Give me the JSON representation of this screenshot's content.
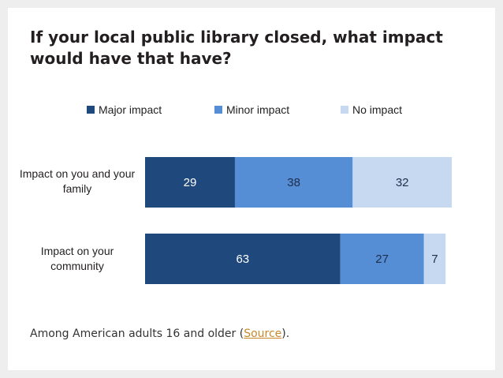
{
  "chart_data": {
    "type": "bar",
    "orientation": "horizontal",
    "stacked": true,
    "title": "If your local public library closed, what impact would have that have?",
    "categories": [
      "Impact on you and your family",
      "Impact on your community"
    ],
    "series": [
      {
        "name": "Major impact",
        "values": [
          29,
          63
        ],
        "color": "#1f497d"
      },
      {
        "name": "Minor impact",
        "values": [
          38,
          27
        ],
        "color": "#558ed5"
      },
      {
        "name": "No impact",
        "values": [
          32,
          7
        ],
        "color": "#c6d9f1"
      }
    ],
    "xlim": [
      0,
      100
    ],
    "grid": false,
    "legend": "top"
  },
  "footnote": {
    "prefix": "Among American adults 16 and older (",
    "link": "Source",
    "suffix": ")."
  }
}
